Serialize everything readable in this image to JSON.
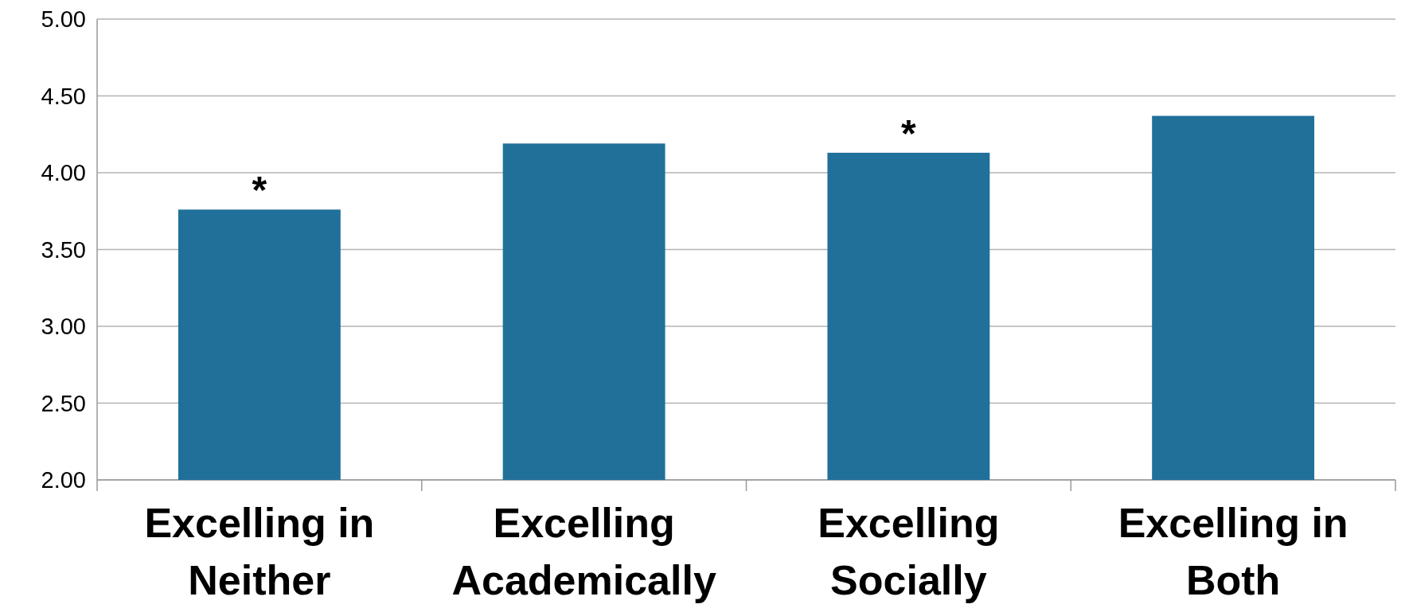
{
  "chart_data": {
    "type": "bar",
    "categories": [
      "Excelling in Neither",
      "Excelling Academically",
      "Excelling Socially",
      "Excelling in Both"
    ],
    "values": [
      3.76,
      4.19,
      4.13,
      4.37
    ],
    "color": "#21709a",
    "ylim": [
      2,
      5
    ],
    "yticks": [
      {
        "value": 2,
        "label": "2.00"
      },
      {
        "value": 2.5,
        "label": "2.50"
      },
      {
        "value": 3,
        "label": "3.00"
      },
      {
        "value": 3.5,
        "label": "3.50"
      },
      {
        "value": 4,
        "label": "4.00"
      },
      {
        "value": 4.5,
        "label": "4.50"
      },
      {
        "value": 5,
        "label": "5.00"
      }
    ],
    "grid": "y",
    "annotations": [
      {
        "text": "*",
        "x": "Excelling in Neither",
        "y": 3.76
      },
      {
        "text": "*",
        "x": "Excelling Socially",
        "y": 4.13
      }
    ]
  }
}
